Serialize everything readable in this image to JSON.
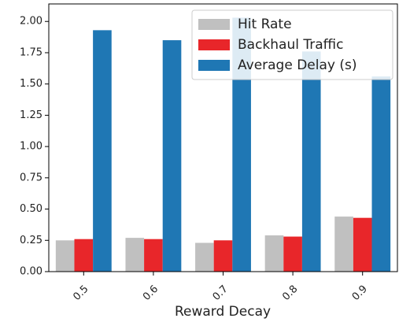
{
  "chart_data": {
    "type": "bar",
    "xlabel": "Reward Decay",
    "categories": [
      "0.5",
      "0.6",
      "0.7",
      "0.8",
      "0.9"
    ],
    "series": [
      {
        "name": "Hit Rate",
        "color": "#c0c0c0",
        "values": [
          0.25,
          0.27,
          0.23,
          0.29,
          0.44
        ]
      },
      {
        "name": "Backhaul Traffic",
        "color": "#e8262a",
        "values": [
          0.26,
          0.26,
          0.25,
          0.28,
          0.43
        ]
      },
      {
        "name": "Average Delay (s)",
        "color": "#1f77b4",
        "values": [
          1.93,
          1.85,
          2.03,
          1.76,
          1.56
        ]
      }
    ],
    "ylim": [
      0,
      2.14
    ],
    "yticks": [
      {
        "value": 0,
        "label": "0.00"
      },
      {
        "value": 0.25,
        "label": "0.25"
      },
      {
        "value": 0.5,
        "label": "0.50"
      },
      {
        "value": 0.75,
        "label": "0.75"
      },
      {
        "value": 1,
        "label": "1.00"
      },
      {
        "value": 1.25,
        "label": "1.25"
      },
      {
        "value": 1.5,
        "label": "1.50"
      },
      {
        "value": 1.75,
        "label": "1.75"
      },
      {
        "value": 2,
        "label": "2.00"
      }
    ],
    "legend": "upper right"
  }
}
